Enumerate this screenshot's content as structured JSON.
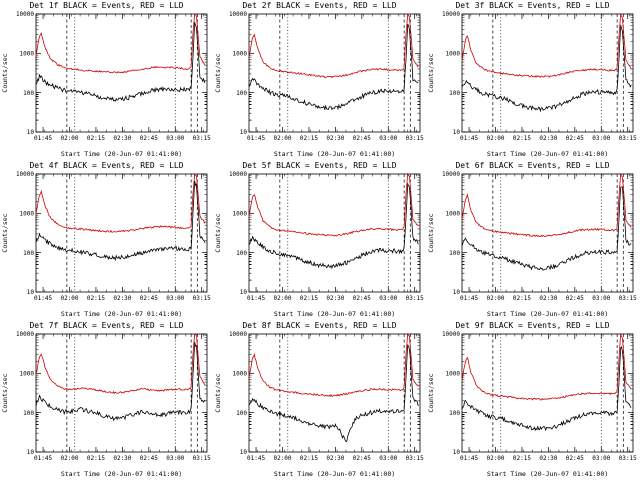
{
  "page": {
    "background": "#ffffff"
  },
  "shared": {
    "ylabel": "Counts/sec",
    "xlabel": "Start Time (20-Jun-07 01:41:00)",
    "x_ticks": [
      "01:45",
      "02:00",
      "02:15",
      "02:30",
      "02:45",
      "03:00",
      "03:15"
    ],
    "x_tick_minutes": [
      4,
      19,
      34,
      49,
      64,
      79,
      94
    ],
    "y_ticks": [
      10,
      100,
      1000,
      10000
    ],
    "xlim": [
      0,
      97
    ],
    "ylim": [
      10,
      10000
    ],
    "y_scale": "log",
    "legend_note": "BLACK = Events, RED = LLD",
    "colors": {
      "events": "#000000",
      "lld": "#cc0000",
      "frame": "#000000"
    },
    "ref_lines": [
      {
        "x": 17.5,
        "style": "dashed"
      },
      {
        "x": 22,
        "style": "dotted"
      },
      {
        "x": 79,
        "style": "dotted"
      },
      {
        "x": 88,
        "style": "dashed"
      },
      {
        "x": 91.5,
        "style": "dashed"
      }
    ],
    "x_samples": [
      0,
      2,
      3,
      5,
      8,
      12,
      16,
      20,
      25,
      30,
      35,
      40,
      45,
      50,
      55,
      60,
      65,
      70,
      75,
      80,
      84,
      86,
      88,
      89,
      90,
      91,
      93,
      96
    ]
  },
  "chart_data": [
    {
      "type": "line",
      "title": "Det 1f BLACK = Events, RED = LLD",
      "series": [
        {
          "name": "LLD",
          "color": "#cc0000",
          "values": [
            900,
            2800,
            3200,
            1500,
            750,
            520,
            430,
            400,
            380,
            360,
            345,
            335,
            325,
            335,
            365,
            400,
            430,
            450,
            445,
            430,
            410,
            400,
            450,
            3000,
            10000,
            9000,
            800,
            500
          ]
        },
        {
          "name": "Events",
          "color": "#000000",
          "values": [
            170,
            260,
            240,
            190,
            160,
            130,
            115,
            108,
            100,
            92,
            80,
            72,
            68,
            70,
            80,
            95,
            110,
            120,
            125,
            122,
            118,
            115,
            130,
            800,
            6000,
            5000,
            250,
            180
          ]
        }
      ]
    },
    {
      "type": "line",
      "title": "Det 2f BLACK = Events, RED = LLD",
      "series": [
        {
          "name": "LLD",
          "color": "#cc0000",
          "values": [
            800,
            2500,
            3000,
            1300,
            600,
            420,
            360,
            340,
            320,
            300,
            280,
            260,
            250,
            255,
            280,
            320,
            360,
            390,
            400,
            380,
            370,
            365,
            420,
            2800,
            10000,
            8500,
            700,
            450
          ]
        },
        {
          "name": "Events",
          "color": "#000000",
          "values": [
            150,
            220,
            200,
            160,
            130,
            100,
            90,
            85,
            75,
            60,
            48,
            42,
            40,
            42,
            50,
            65,
            85,
            100,
            110,
            108,
            105,
            102,
            120,
            700,
            5500,
            4500,
            220,
            160
          ]
        }
      ]
    },
    {
      "type": "line",
      "title": "Det 3f BLACK = Events, RED = LLD",
      "series": [
        {
          "name": "LLD",
          "color": "#cc0000",
          "values": [
            700,
            2200,
            2800,
            1200,
            550,
            400,
            340,
            320,
            300,
            285,
            270,
            260,
            255,
            260,
            285,
            320,
            355,
            380,
            390,
            380,
            370,
            365,
            410,
            2500,
            10000,
            8000,
            650,
            420
          ]
        },
        {
          "name": "Events",
          "color": "#000000",
          "values": [
            140,
            200,
            190,
            150,
            120,
            95,
            85,
            78,
            68,
            55,
            45,
            40,
            38,
            40,
            48,
            62,
            80,
            95,
            105,
            103,
            100,
            98,
            115,
            600,
            5000,
            4000,
            200,
            150
          ]
        }
      ]
    },
    {
      "type": "line",
      "title": "Det 4f BLACK = Events, RED = LLD",
      "series": [
        {
          "name": "LLD",
          "color": "#cc0000",
          "values": [
            1000,
            3000,
            3500,
            1600,
            800,
            550,
            450,
            420,
            400,
            380,
            360,
            350,
            345,
            350,
            375,
            410,
            440,
            460,
            455,
            440,
            420,
            410,
            460,
            3200,
            10000,
            9200,
            850,
            550
          ]
        },
        {
          "name": "Events",
          "color": "#000000",
          "values": [
            180,
            280,
            260,
            200,
            170,
            140,
            120,
            112,
            105,
            95,
            85,
            78,
            74,
            76,
            85,
            100,
            115,
            125,
            130,
            127,
            122,
            118,
            135,
            850,
            6500,
            5200,
            260,
            190
          ]
        }
      ]
    },
    {
      "type": "line",
      "title": "Det 5f BLACK = Events, RED = LLD",
      "series": [
        {
          "name": "LLD",
          "color": "#cc0000",
          "values": [
            850,
            2600,
            3100,
            1400,
            650,
            450,
            380,
            360,
            340,
            320,
            300,
            285,
            275,
            280,
            300,
            340,
            375,
            400,
            405,
            390,
            380,
            375,
            430,
            2900,
            10000,
            8800,
            720,
            470
          ]
        },
        {
          "name": "Events",
          "color": "#000000",
          "values": [
            160,
            240,
            220,
            175,
            140,
            110,
            95,
            88,
            78,
            65,
            55,
            48,
            45,
            47,
            55,
            70,
            90,
            105,
            115,
            112,
            108,
            105,
            125,
            750,
            5800,
            4800,
            230,
            170
          ]
        }
      ]
    },
    {
      "type": "line",
      "title": "Det 6f BLACK = Events, RED = LLD",
      "series": [
        {
          "name": "LLD",
          "color": "#cc0000",
          "values": [
            750,
            2300,
            2900,
            1250,
            580,
            420,
            360,
            340,
            320,
            300,
            285,
            272,
            265,
            270,
            290,
            325,
            360,
            385,
            395,
            385,
            375,
            370,
            415,
            2600,
            10000,
            8200,
            680,
            440
          ]
        },
        {
          "name": "Events",
          "color": "#000000",
          "values": [
            150,
            210,
            195,
            155,
            125,
            100,
            88,
            80,
            70,
            58,
            48,
            42,
            40,
            42,
            50,
            64,
            82,
            96,
            106,
            104,
            101,
            99,
            118,
            620,
            5200,
            4200,
            210,
            155
          ]
        }
      ]
    },
    {
      "type": "line",
      "title": "Det 7f BLACK = Events, RED = LLD",
      "series": [
        {
          "name": "LLD",
          "color": "#cc0000",
          "values": [
            900,
            2700,
            3200,
            1500,
            700,
            480,
            400,
            380,
            420,
            400,
            370,
            340,
            320,
            330,
            360,
            400,
            380,
            360,
            380,
            400,
            390,
            380,
            430,
            3000,
            10000,
            9000,
            800,
            520
          ]
        },
        {
          "name": "Events",
          "color": "#000000",
          "values": [
            160,
            250,
            230,
            180,
            150,
            120,
            105,
            110,
            120,
            110,
            95,
            80,
            70,
            75,
            90,
            105,
            95,
            85,
            95,
            105,
            100,
            95,
            115,
            780,
            6000,
            4900,
            240,
            175
          ]
        }
      ]
    },
    {
      "type": "line",
      "title": "Det 8f BLACK = Events, RED = LLD",
      "series": [
        {
          "name": "LLD",
          "color": "#cc0000",
          "values": [
            800,
            2400,
            3000,
            1350,
            620,
            440,
            370,
            350,
            330,
            310,
            295,
            282,
            272,
            278,
            298,
            335,
            370,
            392,
            400,
            388,
            378,
            372,
            420,
            2700,
            10000,
            8500,
            700,
            460
          ]
        },
        {
          "name": "Events",
          "color": "#000000",
          "values": [
            155,
            225,
            205,
            165,
            132,
            105,
            92,
            85,
            75,
            62,
            52,
            46,
            44,
            46,
            18,
            68,
            88,
            102,
            112,
            110,
            106,
            103,
            122,
            700,
            5500,
            4500,
            225,
            165
          ]
        }
      ]
    },
    {
      "type": "line",
      "title": "Det 9f BLACK = Events, RED = LLD",
      "series": [
        {
          "name": "LLD",
          "color": "#cc0000",
          "values": [
            700,
            2000,
            2600,
            1100,
            500,
            350,
            290,
            270,
            255,
            240,
            230,
            222,
            218,
            222,
            238,
            265,
            292,
            310,
            318,
            310,
            302,
            298,
            340,
            2200,
            10000,
            7800,
            600,
            400
          ]
        },
        {
          "name": "Events",
          "color": "#000000",
          "values": [
            140,
            190,
            180,
            145,
            115,
            92,
            80,
            74,
            65,
            54,
            46,
            41,
            39,
            41,
            48,
            60,
            76,
            90,
            99,
            97,
            94,
            92,
            110,
            580,
            4800,
            3900,
            190,
            140
          ]
        }
      ]
    }
  ]
}
